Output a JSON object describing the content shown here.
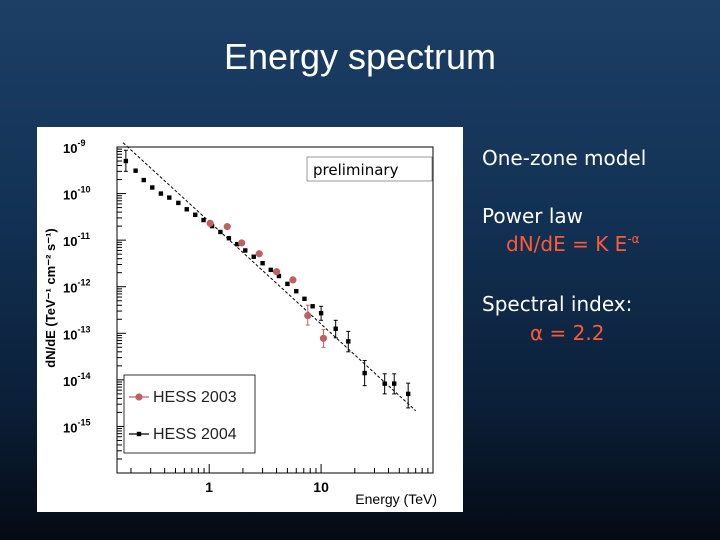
{
  "slide": {
    "title": "Energy spectrum"
  },
  "side_panel": {
    "line1": "One-zone model",
    "line2": "Power law",
    "formula_main": "dN/dE = K E",
    "formula_exp": "-α",
    "line4": "Spectral index:",
    "index_value": "α = 2.2"
  },
  "colors": {
    "accent": "#ff5a36",
    "hess2003": "#c06060",
    "hess2004": "#000000"
  },
  "chart_data": {
    "type": "scatter",
    "scale": "log-log",
    "xlabel": "Energy (TeV)",
    "ylabel": "dN/dE (TeV⁻¹ cm⁻² s⁻¹)",
    "xlim": [
      0.15,
      100
    ],
    "ylim": [
      1e-16,
      1e-09
    ],
    "x_ticks": [
      {
        "value": 1,
        "label": "1"
      },
      {
        "value": 10,
        "label": "10"
      }
    ],
    "y_ticks": [
      {
        "value": 1e-09,
        "mant": "10",
        "exp": "-9"
      },
      {
        "value": 1e-10,
        "mant": "10",
        "exp": "-10"
      },
      {
        "value": 1e-11,
        "mant": "10",
        "exp": "-11"
      },
      {
        "value": 1e-12,
        "mant": "10",
        "exp": "-12"
      },
      {
        "value": 1e-13,
        "mant": "10",
        "exp": "-13"
      },
      {
        "value": 1e-14,
        "mant": "10",
        "exp": "-14"
      },
      {
        "value": 1e-15,
        "mant": "10",
        "exp": "-15"
      }
    ],
    "annotation": "preliminary",
    "legend_placement": "bottom-left",
    "fit": {
      "type": "power-law",
      "index": 2.2,
      "x_range": [
        0.17,
        70
      ],
      "y_at_1TeV": 2.5e-11
    },
    "series": [
      {
        "name": "HESS 2003",
        "marker": "circle",
        "points": [
          {
            "x": 1.02,
            "y": 2.3e-11
          },
          {
            "x": 1.45,
            "y": 1.95e-11
          },
          {
            "x": 1.95,
            "y": 8.7e-12
          },
          {
            "x": 2.8,
            "y": 5.1e-12
          },
          {
            "x": 4.0,
            "y": 2.1e-12
          },
          {
            "x": 5.6,
            "y": 1.4e-12
          },
          {
            "x": 7.6,
            "y": 2.4e-13,
            "err": [
              1.5e-13,
              4e-13
            ]
          },
          {
            "x": 10.5,
            "y": 7.8e-14,
            "err": [
              5e-14,
              1.2e-13
            ]
          }
        ]
      },
      {
        "name": "HESS 2004",
        "marker": "square",
        "points": [
          {
            "x": 0.18,
            "y": 5e-10,
            "err": [
              3e-10,
              8.5e-10
            ]
          },
          {
            "x": 0.22,
            "y": 3.1e-10
          },
          {
            "x": 0.26,
            "y": 1.95e-10
          },
          {
            "x": 0.31,
            "y": 1.35e-10
          },
          {
            "x": 0.37,
            "y": 1e-10
          },
          {
            "x": 0.44,
            "y": 8.2e-11
          },
          {
            "x": 0.53,
            "y": 6.3e-11
          },
          {
            "x": 0.63,
            "y": 4.6e-11
          },
          {
            "x": 0.75,
            "y": 3.5e-11
          },
          {
            "x": 0.89,
            "y": 2.7e-11
          },
          {
            "x": 1.06,
            "y": 2e-11
          },
          {
            "x": 1.26,
            "y": 1.5e-11
          },
          {
            "x": 1.5,
            "y": 1.1e-11
          },
          {
            "x": 1.78,
            "y": 8.2e-12
          },
          {
            "x": 2.1,
            "y": 6e-12
          },
          {
            "x": 2.5,
            "y": 4.4e-12
          },
          {
            "x": 3.0,
            "y": 3.2e-12
          },
          {
            "x": 3.55,
            "y": 2.3e-12
          },
          {
            "x": 4.2,
            "y": 1.7e-12
          },
          {
            "x": 5.0,
            "y": 1.15e-12
          },
          {
            "x": 6.0,
            "y": 8e-13
          },
          {
            "x": 7.1,
            "y": 5.5e-13
          },
          {
            "x": 8.4,
            "y": 3.8e-13
          },
          {
            "x": 10.0,
            "y": 2.7e-13,
            "err": [
              1.9e-13,
              3.8e-13
            ]
          },
          {
            "x": 13.5,
            "y": 1.25e-13,
            "err": [
              8e-14,
              1.9e-13
            ]
          },
          {
            "x": 17.5,
            "y": 6.7e-14,
            "err": [
              4e-14,
              1.1e-13
            ]
          },
          {
            "x": 24.5,
            "y": 1.4e-14,
            "err": [
              7.5e-15,
              2.6e-14
            ]
          },
          {
            "x": 37.0,
            "y": 8.3e-15,
            "err": [
              5e-15,
              1.35e-14
            ]
          },
          {
            "x": 45.0,
            "y": 8.3e-15,
            "err": [
              5e-15,
              1.35e-14
            ]
          },
          {
            "x": 60.0,
            "y": 5e-15,
            "err": [
              2.5e-15,
              8.5e-15
            ]
          }
        ]
      }
    ]
  }
}
